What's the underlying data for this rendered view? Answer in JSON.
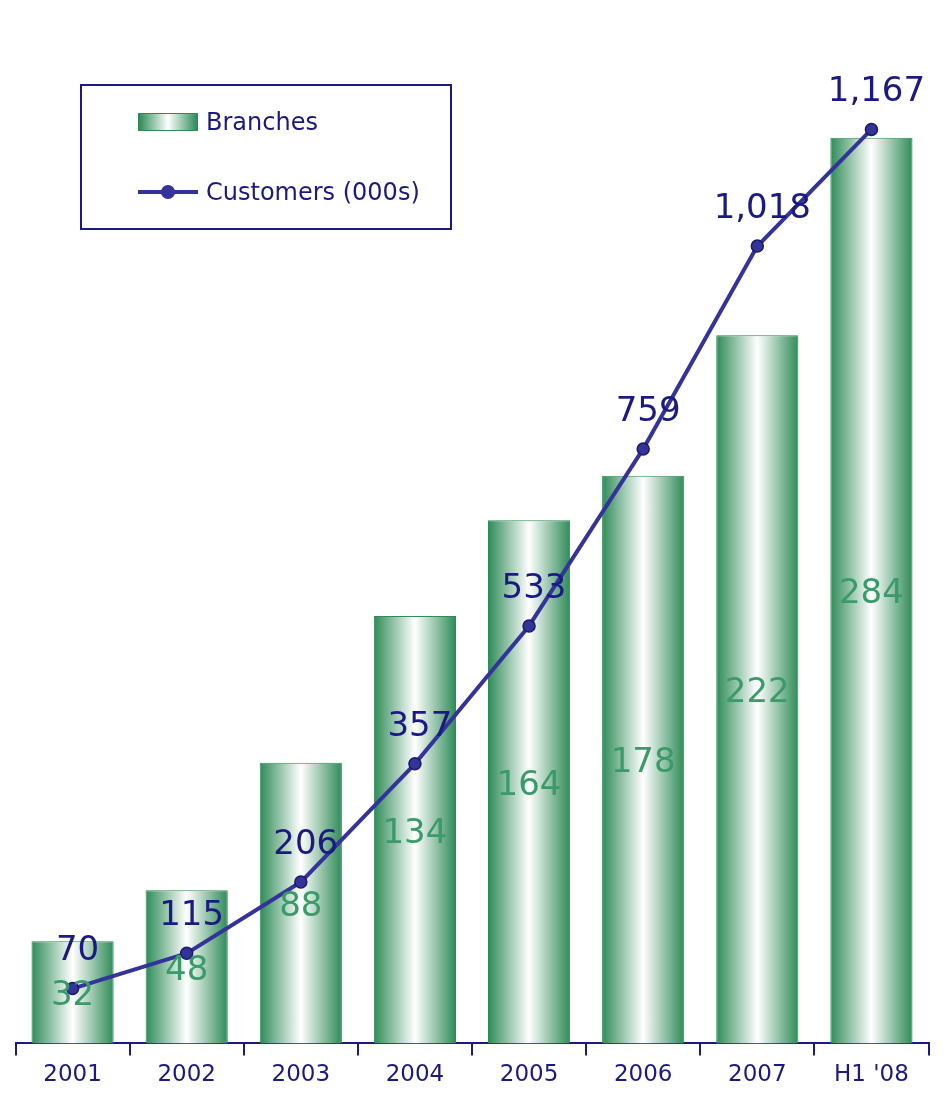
{
  "chart_data": {
    "type": "bar",
    "categories": [
      "2001",
      "2002",
      "2003",
      "2004",
      "2005",
      "2006",
      "2007",
      "H1 '08"
    ],
    "series": [
      {
        "name": "Branches",
        "color": "#2e8b57",
        "values": [
          32,
          48,
          88,
          134,
          164,
          178,
          222,
          284
        ]
      },
      {
        "name": "Customers (000s)",
        "type": "line",
        "axis": "y2",
        "color": "#333399",
        "values": [
          70,
          115,
          206,
          357,
          533,
          759,
          1018,
          1167
        ],
        "value_labels": [
          "70",
          "115",
          "206",
          "357",
          "533",
          "759",
          "1,018",
          "1,167"
        ]
      }
    ],
    "data_labels": true,
    "legend": "top left",
    "marker": "circle",
    "grid": false
  }
}
